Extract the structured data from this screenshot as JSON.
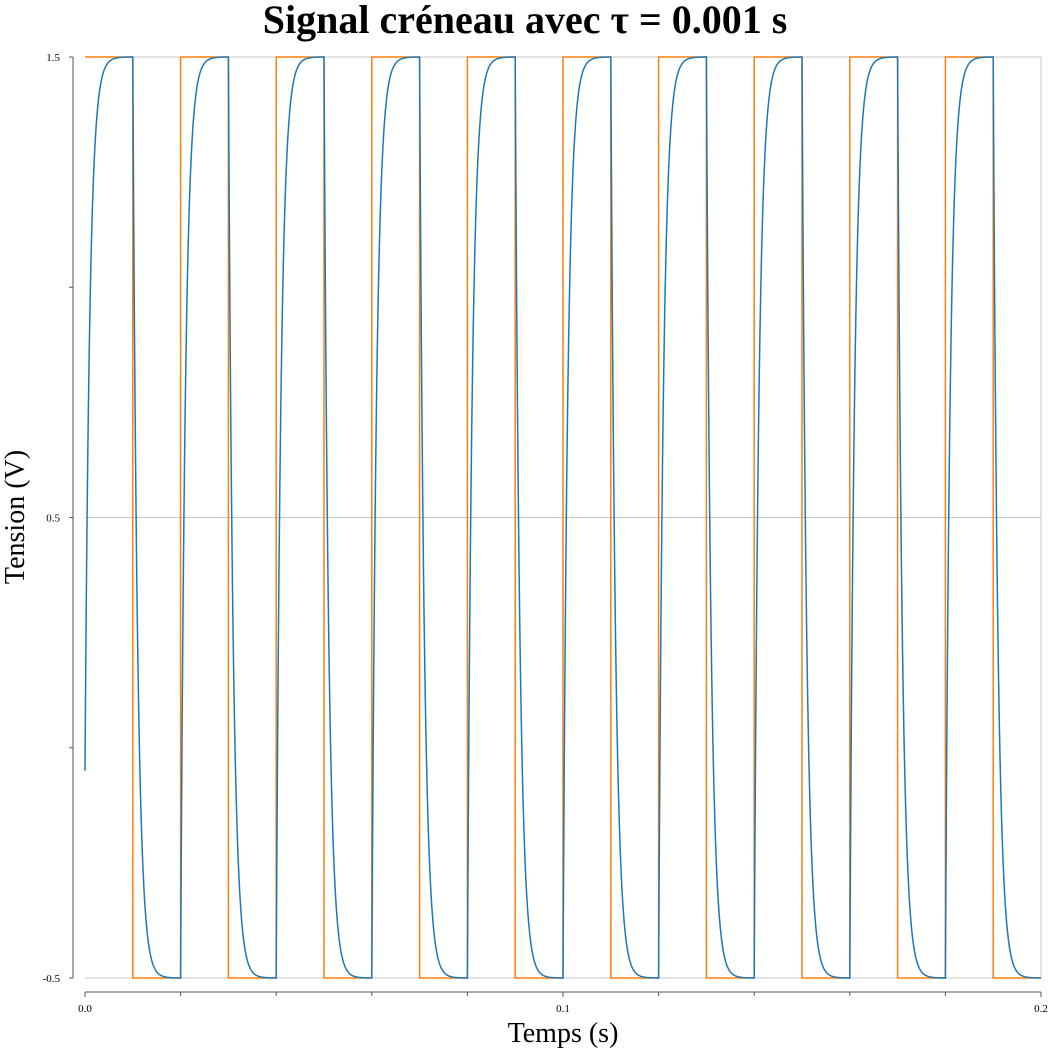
{
  "chart_data": {
    "type": "line",
    "title": "Signal créneau avec τ = 0.001 s",
    "xlabel": "Temps (s)",
    "ylabel": "Tension (V)",
    "xlim": [
      0,
      0.2
    ],
    "ylim": [
      -0.5,
      1.5
    ],
    "x_ticks": [
      {
        "value": 0.0,
        "label": "0.0"
      },
      {
        "value": 0.1,
        "label": "0.1"
      },
      {
        "value": 0.2,
        "label": "0.2"
      }
    ],
    "x_minor_ticks": [
      0.02,
      0.04,
      0.06,
      0.08,
      0.12,
      0.14,
      0.16,
      0.18
    ],
    "y_ticks": [
      {
        "value": -0.5,
        "label": "-0.5"
      },
      {
        "value": 0.5,
        "label": "0.5"
      },
      {
        "value": 1.5,
        "label": "1.5"
      }
    ],
    "y_minor_ticks": [
      0.0,
      1.0
    ],
    "grid": true,
    "series": [
      {
        "role": "square-input",
        "color": "#ff7f0e",
        "high": 1.5,
        "low": -0.5,
        "period": 0.02,
        "duty": 0.5,
        "start": 0.0,
        "end": 0.2
      },
      {
        "role": "rc-response",
        "color": "#1f77b4",
        "tau": 0.001,
        "initial_value": -0.05,
        "start": 0.0,
        "end": 0.2
      }
    ]
  }
}
